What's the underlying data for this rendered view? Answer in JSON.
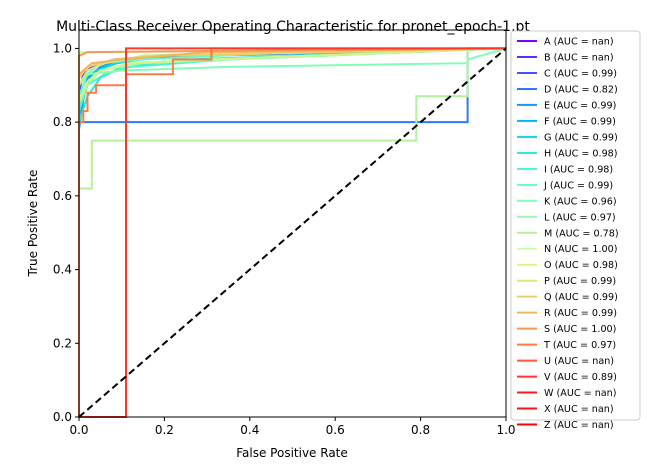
{
  "chart_data": {
    "type": "line",
    "title": "Multi-Class Receiver Operating Characteristic for pronet_epoch-1.pt",
    "xlabel": "False Positive Rate",
    "ylabel": "True Positive Rate",
    "xlim": [
      0.0,
      1.0
    ],
    "ylim": [
      0.0,
      1.05
    ],
    "x_ticks": [
      "0.0",
      "0.2",
      "0.4",
      "0.6",
      "0.8",
      "1.0"
    ],
    "y_ticks": [
      "0.0",
      "0.2",
      "0.4",
      "0.6",
      "0.8",
      "1.0"
    ],
    "grid": false,
    "legend_position": "outside-right",
    "series": [
      {
        "name": "A (AUC = nan)",
        "color": "#8000ff",
        "points": []
      },
      {
        "name": "B (AUC = nan)",
        "color": "#6629fe",
        "points": []
      },
      {
        "name": "C (AUC = 0.99)",
        "color": "#4c50fc",
        "points": [
          [
            0,
            0
          ],
          [
            0,
            0.88
          ],
          [
            0.01,
            0.93
          ],
          [
            0.03,
            0.95
          ],
          [
            0.08,
            0.97
          ],
          [
            0.2,
            0.98
          ],
          [
            0.5,
            0.99
          ],
          [
            1,
            1
          ]
        ]
      },
      {
        "name": "D (AUC = 0.82)",
        "color": "#3176f8",
        "points": [
          [
            0,
            0
          ],
          [
            0,
            0.8
          ],
          [
            0.91,
            0.8
          ],
          [
            0.91,
            1
          ],
          [
            1,
            1
          ]
        ]
      },
      {
        "name": "E (AUC = 0.99)",
        "color": "#1996f3",
        "points": [
          [
            0,
            0
          ],
          [
            0,
            0.78
          ],
          [
            0.01,
            0.86
          ],
          [
            0.02,
            0.92
          ],
          [
            0.05,
            0.95
          ],
          [
            0.1,
            0.97
          ],
          [
            0.3,
            0.98
          ],
          [
            1,
            1
          ]
        ]
      },
      {
        "name": "F (AUC = 0.99)",
        "color": "#01b4ec",
        "points": [
          [
            0,
            0
          ],
          [
            0,
            0.82
          ],
          [
            0.01,
            0.88
          ],
          [
            0.03,
            0.93
          ],
          [
            0.07,
            0.96
          ],
          [
            0.15,
            0.98
          ],
          [
            0.4,
            0.99
          ],
          [
            1,
            1
          ]
        ]
      },
      {
        "name": "G (AUC = 0.99)",
        "color": "#19cee3",
        "points": [
          [
            0,
            0
          ],
          [
            0,
            0.84
          ],
          [
            0.02,
            0.9
          ],
          [
            0.04,
            0.94
          ],
          [
            0.09,
            0.96
          ],
          [
            0.2,
            0.98
          ],
          [
            1,
            1
          ]
        ]
      },
      {
        "name": "H (AUC = 0.98)",
        "color": "#31e3d9",
        "points": [
          [
            0,
            0
          ],
          [
            0,
            0.8
          ],
          [
            0.02,
            0.87
          ],
          [
            0.05,
            0.92
          ],
          [
            0.1,
            0.95
          ],
          [
            0.25,
            0.97
          ],
          [
            1,
            1
          ]
        ]
      },
      {
        "name": "I (AUC = 0.98)",
        "color": "#4cf2ce",
        "points": [
          [
            0,
            0
          ],
          [
            0,
            0.83
          ],
          [
            0.02,
            0.9
          ],
          [
            0.06,
            0.93
          ],
          [
            0.12,
            0.95
          ],
          [
            0.35,
            0.97
          ],
          [
            1,
            1
          ]
        ]
      },
      {
        "name": "J (AUC = 0.99)",
        "color": "#66fcc2",
        "points": [
          [
            0,
            0
          ],
          [
            0,
            0.87
          ],
          [
            0.02,
            0.93
          ],
          [
            0.05,
            0.96
          ],
          [
            0.15,
            0.97
          ],
          [
            0.5,
            0.99
          ],
          [
            1,
            1
          ]
        ]
      },
      {
        "name": "K (AUC = 0.96)",
        "color": "#7ffeb6",
        "points": [
          [
            0,
            0
          ],
          [
            0,
            0.9
          ],
          [
            0.02,
            0.93
          ],
          [
            0.1,
            0.94
          ],
          [
            0.35,
            0.95
          ],
          [
            0.91,
            0.96
          ],
          [
            0.91,
            0.97
          ],
          [
            1,
            1
          ]
        ]
      },
      {
        "name": "L (AUC = 0.97)",
        "color": "#99fca9",
        "points": [
          [
            0,
            0
          ],
          [
            0,
            0.85
          ],
          [
            0.02,
            0.9
          ],
          [
            0.05,
            0.94
          ],
          [
            0.15,
            0.96
          ],
          [
            0.35,
            0.97
          ],
          [
            1,
            1
          ]
        ]
      },
      {
        "name": "M (AUC = 0.78)",
        "color": "#b2f29c",
        "points": [
          [
            0,
            0
          ],
          [
            0,
            0.62
          ],
          [
            0.03,
            0.62
          ],
          [
            0.03,
            0.75
          ],
          [
            0.79,
            0.75
          ],
          [
            0.79,
            0.87
          ],
          [
            0.91,
            0.87
          ],
          [
            0.91,
            1
          ],
          [
            1,
            1
          ]
        ]
      },
      {
        "name": "N (AUC = 1.00)",
        "color": "#ccffa4",
        "points": [
          [
            0,
            0
          ],
          [
            0,
            0.99
          ],
          [
            0.05,
            0.99
          ],
          [
            1,
            1
          ]
        ]
      },
      {
        "name": "O (AUC = 0.98)",
        "color": "#d9f28a",
        "points": [
          [
            0,
            0
          ],
          [
            0,
            0.86
          ],
          [
            0.02,
            0.91
          ],
          [
            0.05,
            0.94
          ],
          [
            0.12,
            0.96
          ],
          [
            0.3,
            0.97
          ],
          [
            1,
            1
          ]
        ]
      },
      {
        "name": "P (AUC = 0.99)",
        "color": "#e3e37c",
        "points": [
          [
            0,
            0
          ],
          [
            0,
            0.9
          ],
          [
            0.02,
            0.94
          ],
          [
            0.06,
            0.96
          ],
          [
            0.15,
            0.98
          ],
          [
            0.4,
            0.99
          ],
          [
            1,
            1
          ]
        ]
      },
      {
        "name": "Q (AUC = 0.99)",
        "color": "#ecce6f",
        "points": [
          [
            0,
            0
          ],
          [
            0,
            0.92
          ],
          [
            0.02,
            0.95
          ],
          [
            0.08,
            0.97
          ],
          [
            0.2,
            0.98
          ],
          [
            1,
            1
          ]
        ]
      },
      {
        "name": "R (AUC = 0.99)",
        "color": "#f3b462",
        "points": [
          [
            0,
            0
          ],
          [
            0,
            0.93
          ],
          [
            0.03,
            0.96
          ],
          [
            0.1,
            0.97
          ],
          [
            0.3,
            0.99
          ],
          [
            1,
            1
          ]
        ]
      },
      {
        "name": "S (AUC = 1.00)",
        "color": "#f89855",
        "points": [
          [
            0,
            0
          ],
          [
            0,
            0.98
          ],
          [
            0.02,
            0.99
          ],
          [
            1,
            1
          ]
        ]
      },
      {
        "name": "T (AUC = 0.97)",
        "color": "#fc7a48",
        "points": [
          [
            0,
            0
          ],
          [
            0,
            0.8
          ],
          [
            0.01,
            0.8
          ],
          [
            0.01,
            0.83
          ],
          [
            0.02,
            0.83
          ],
          [
            0.02,
            0.88
          ],
          [
            0.04,
            0.88
          ],
          [
            0.04,
            0.9
          ],
          [
            0.11,
            0.9
          ],
          [
            0.11,
            0.93
          ],
          [
            0.22,
            0.93
          ],
          [
            0.22,
            0.97
          ],
          [
            0.31,
            0.97
          ],
          [
            0.31,
            1
          ],
          [
            1,
            1
          ]
        ]
      },
      {
        "name": "U (AUC = nan)",
        "color": "#fe593a",
        "points": []
      },
      {
        "name": "V (AUC = 0.89)",
        "color": "#fe362c",
        "points": [
          [
            0,
            0
          ],
          [
            0.11,
            0
          ],
          [
            0.11,
            1
          ],
          [
            1,
            1
          ]
        ]
      },
      {
        "name": "W (AUC = nan)",
        "color": "#fc1a1d",
        "points": []
      },
      {
        "name": "X (AUC = nan)",
        "color": "#f8160f",
        "points": []
      },
      {
        "name": "Z (AUC = nan)",
        "color": "#ff0000",
        "points": []
      }
    ],
    "diagonal": {
      "color": "#000000",
      "points": [
        [
          0,
          0
        ],
        [
          1,
          1
        ]
      ]
    }
  }
}
